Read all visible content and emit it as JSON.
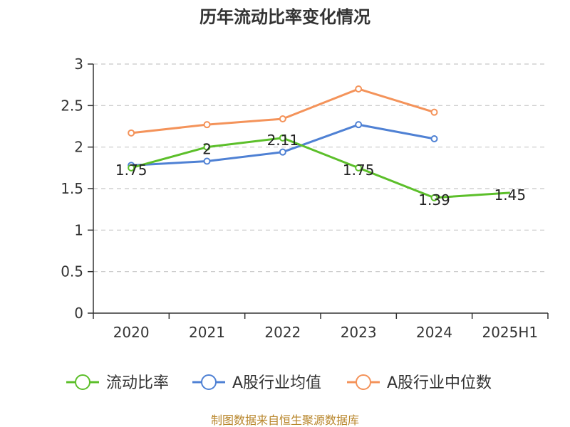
{
  "chart_data": {
    "type": "line",
    "title": "历年流动比率变化情况",
    "categories": [
      "2020",
      "2021",
      "2022",
      "2023",
      "2024",
      "2025H1"
    ],
    "ylim": [
      0,
      3
    ],
    "yticks": [
      0,
      0.5,
      1,
      1.5,
      2,
      2.5,
      3
    ],
    "ytick_labels": [
      "0",
      "0.5",
      "1",
      "1.5",
      "2",
      "2.5",
      "3"
    ],
    "grid": true,
    "legend": "bottom",
    "series": [
      {
        "name": "流动比率",
        "color": "#5cbf2a",
        "values": [
          1.75,
          2,
          2.11,
          1.75,
          1.39,
          1.45
        ],
        "labels": [
          "1.75",
          "2",
          "2.11",
          "1.75",
          "1.39",
          "1.45"
        ],
        "markers": [
          true,
          true,
          true,
          true,
          true,
          false
        ]
      },
      {
        "name": "A股行业均值",
        "color": "#4f81d4",
        "values": [
          1.78,
          1.83,
          1.94,
          2.27,
          2.1,
          null
        ],
        "markers": [
          true,
          true,
          true,
          true,
          true,
          false
        ]
      },
      {
        "name": "A股行业中位数",
        "color": "#f4935a",
        "values": [
          2.17,
          2.27,
          2.34,
          2.7,
          2.42,
          null
        ],
        "markers": [
          true,
          true,
          true,
          true,
          true,
          false
        ]
      }
    ]
  },
  "source": "制图数据来自恒生聚源数据库"
}
